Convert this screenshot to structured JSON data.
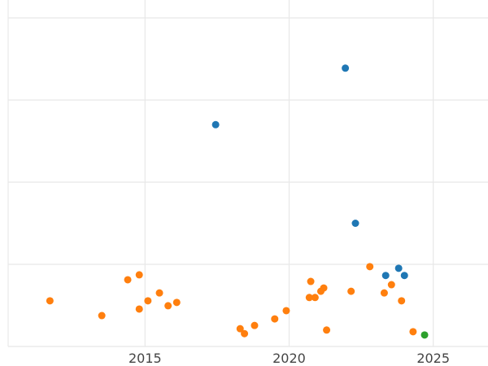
{
  "chart_data": {
    "type": "scatter",
    "title": "",
    "xlabel": "",
    "ylabel": "",
    "xlim": [
      2010.25,
      2026.9
    ],
    "ylim": [
      0,
      100
    ],
    "x_ticks": [
      2015,
      2020,
      2025
    ],
    "x_tick_labels": [
      "2015",
      "2020",
      "2025"
    ],
    "y_gridlines": [
      0,
      25,
      50,
      75,
      100
    ],
    "y_tick_labels_visible": false,
    "grid": true,
    "legend": "none",
    "series": [
      {
        "color": "#1f77b4",
        "points": [
          {
            "x": 2017.45,
            "y": 67.5
          },
          {
            "x": 2021.95,
            "y": 84.7
          },
          {
            "x": 2022.3,
            "y": 37.5
          },
          {
            "x": 2023.35,
            "y": 21.6
          },
          {
            "x": 2023.8,
            "y": 23.8
          },
          {
            "x": 2024.0,
            "y": 21.6
          }
        ]
      },
      {
        "color": "#ff7f0e",
        "points": [
          {
            "x": 2011.7,
            "y": 13.9
          },
          {
            "x": 2013.5,
            "y": 9.4
          },
          {
            "x": 2014.4,
            "y": 20.3
          },
          {
            "x": 2014.8,
            "y": 21.8
          },
          {
            "x": 2014.8,
            "y": 11.4
          },
          {
            "x": 2015.1,
            "y": 13.9
          },
          {
            "x": 2015.5,
            "y": 16.3
          },
          {
            "x": 2015.8,
            "y": 12.4
          },
          {
            "x": 2016.1,
            "y": 13.4
          },
          {
            "x": 2018.3,
            "y": 5.4
          },
          {
            "x": 2018.45,
            "y": 3.9
          },
          {
            "x": 2018.8,
            "y": 6.4
          },
          {
            "x": 2019.5,
            "y": 8.4
          },
          {
            "x": 2019.9,
            "y": 10.9
          },
          {
            "x": 2020.7,
            "y": 14.9
          },
          {
            "x": 2020.75,
            "y": 19.8
          },
          {
            "x": 2020.9,
            "y": 14.9
          },
          {
            "x": 2021.1,
            "y": 16.8
          },
          {
            "x": 2021.2,
            "y": 17.8
          },
          {
            "x": 2021.3,
            "y": 5.0
          },
          {
            "x": 2022.15,
            "y": 16.8
          },
          {
            "x": 2022.8,
            "y": 24.3
          },
          {
            "x": 2023.3,
            "y": 16.3
          },
          {
            "x": 2023.55,
            "y": 18.8
          },
          {
            "x": 2023.9,
            "y": 13.9
          },
          {
            "x": 2024.3,
            "y": 4.5
          }
        ]
      },
      {
        "color": "#2ca02c",
        "points": [
          {
            "x": 2024.7,
            "y": 3.5
          }
        ]
      }
    ]
  }
}
